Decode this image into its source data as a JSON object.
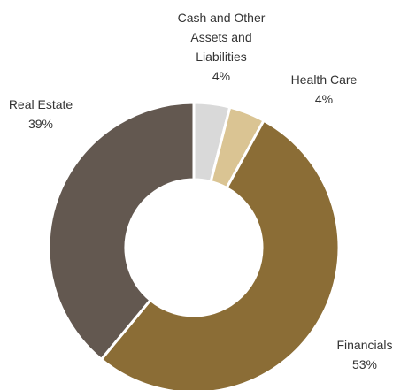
{
  "chart_data": {
    "type": "donut",
    "categories": [
      "Cash and Other Assets and Liabilities",
      "Health Care",
      "Financials",
      "Real Estate"
    ],
    "values": [
      4,
      4,
      53,
      39
    ],
    "value_labels": [
      "4%",
      "4%",
      "53%",
      "39%"
    ],
    "colors": [
      "#d9d9d9",
      "#dac493",
      "#8b6d36",
      "#635850"
    ]
  }
}
